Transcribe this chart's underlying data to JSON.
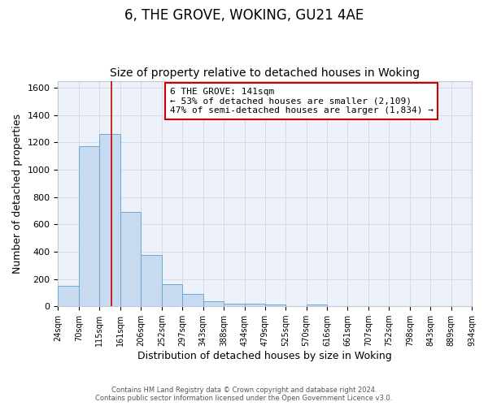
{
  "title": "6, THE GROVE, WOKING, GU21 4AE",
  "subtitle": "Size of property relative to detached houses in Woking",
  "xlabel": "Distribution of detached houses by size in Woking",
  "ylabel": "Number of detached properties",
  "footer_line1": "Contains HM Land Registry data © Crown copyright and database right 2024.",
  "footer_line2": "Contains public sector information licensed under the Open Government Licence v3.0.",
  "annotation_line1": "6 THE GROVE: 141sqm",
  "annotation_line2": "← 53% of detached houses are smaller (2,109)",
  "annotation_line3": "47% of semi-detached houses are larger (1,834) →",
  "bar_edges": [
    24,
    70,
    115,
    161,
    206,
    252,
    297,
    343,
    388,
    434,
    479,
    525,
    570,
    616,
    661,
    707,
    752,
    798,
    843,
    889,
    934
  ],
  "bar_heights": [
    148,
    1170,
    1260,
    690,
    375,
    162,
    93,
    38,
    22,
    22,
    13,
    0,
    13,
    0,
    0,
    0,
    0,
    0,
    0,
    0
  ],
  "bar_color": "#c8daf0",
  "bar_edge_color": "#6aaad4",
  "vline_x": 141,
  "vline_color": "#cc0000",
  "ylim": [
    0,
    1650
  ],
  "yticks": [
    0,
    200,
    400,
    600,
    800,
    1000,
    1200,
    1400,
    1600
  ],
  "grid_color": "#d0d8e8",
  "background_color": "#ffffff",
  "plot_bg_color": "#edf2fa",
  "title_fontsize": 12,
  "subtitle_fontsize": 10
}
